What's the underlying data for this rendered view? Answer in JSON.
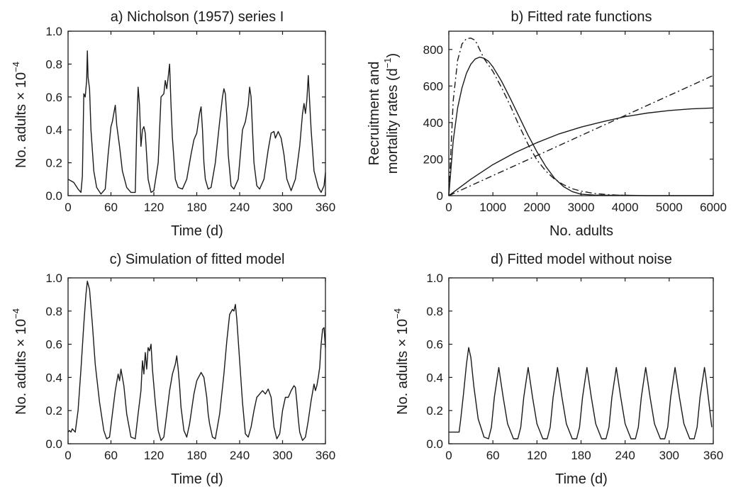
{
  "chart_data": [
    {
      "id": "a",
      "type": "line",
      "title": "a) Nicholson (1957) series I",
      "xlabel": "Time (d)",
      "ylabel": "No. adults × 10",
      "ylabel_exp": "−4",
      "xlim": [
        0,
        360
      ],
      "ylim": [
        0,
        1.0
      ],
      "xticks": [
        "0",
        "60",
        "120",
        "180",
        "240",
        "300",
        "360"
      ],
      "yticks": [
        "0.0",
        "0.2",
        "0.4",
        "0.6",
        "0.8",
        "1.0"
      ],
      "series": [
        {
          "style": "solid",
          "x": [
            0,
            8,
            14,
            18,
            20,
            22,
            24,
            26,
            27,
            28,
            30,
            32,
            36,
            40,
            46,
            52,
            56,
            60,
            62,
            64,
            66,
            68,
            72,
            76,
            82,
            88,
            92,
            94,
            96,
            98,
            100,
            102,
            104,
            106,
            108,
            112,
            116,
            120,
            126,
            130,
            134,
            136,
            138,
            140,
            142,
            144,
            146,
            150,
            154,
            160,
            166,
            172,
            176,
            180,
            184,
            186,
            188,
            190,
            192,
            196,
            200,
            206,
            212,
            216,
            218,
            220,
            222,
            224,
            228,
            232,
            238,
            244,
            248,
            252,
            254,
            256,
            258,
            260,
            264,
            268,
            274,
            280,
            284,
            288,
            290,
            294,
            298,
            302,
            306,
            312,
            318,
            324,
            328,
            330,
            332,
            334,
            336,
            340,
            344,
            350,
            354,
            358,
            360
          ],
          "y": [
            0.1,
            0.08,
            0.04,
            0.02,
            0.12,
            0.62,
            0.6,
            0.7,
            0.88,
            0.72,
            0.65,
            0.4,
            0.15,
            0.05,
            0.01,
            0.04,
            0.25,
            0.42,
            0.45,
            0.5,
            0.55,
            0.43,
            0.3,
            0.15,
            0.05,
            0.02,
            0.02,
            0.02,
            0.4,
            0.66,
            0.55,
            0.3,
            0.4,
            0.42,
            0.38,
            0.1,
            0.02,
            0.03,
            0.2,
            0.6,
            0.62,
            0.7,
            0.65,
            0.72,
            0.8,
            0.55,
            0.35,
            0.1,
            0.05,
            0.04,
            0.1,
            0.25,
            0.34,
            0.38,
            0.5,
            0.54,
            0.4,
            0.2,
            0.1,
            0.04,
            0.05,
            0.2,
            0.45,
            0.6,
            0.65,
            0.62,
            0.48,
            0.25,
            0.06,
            0.04,
            0.1,
            0.4,
            0.45,
            0.55,
            0.66,
            0.6,
            0.4,
            0.2,
            0.06,
            0.04,
            0.1,
            0.28,
            0.38,
            0.39,
            0.35,
            0.39,
            0.35,
            0.25,
            0.1,
            0.03,
            0.1,
            0.3,
            0.5,
            0.56,
            0.5,
            0.58,
            0.73,
            0.4,
            0.15,
            0.05,
            0.02,
            0.06,
            0.14
          ]
        }
      ]
    },
    {
      "id": "b",
      "type": "line",
      "title": "b) Fitted rate functions",
      "xlabel": "No. adults",
      "ylabel": "Recruitment and",
      "ylabel_line2": "mortality rates (d",
      "ylabel_exp": "−1",
      "ylabel_tail": ")",
      "xlim": [
        0,
        6000
      ],
      "ylim": [
        0,
        900
      ],
      "xticks": [
        "0",
        "1000",
        "2000",
        "3000",
        "4000",
        "5000",
        "6000"
      ],
      "yticks": [
        "0",
        "200",
        "400",
        "600",
        "800"
      ],
      "series": [
        {
          "style": "solid",
          "x": [
            0,
            100,
            200,
            300,
            400,
            500,
            600,
            700,
            800,
            900,
            1000,
            1200,
            1400,
            1600,
            1800,
            2000,
            2200,
            2400,
            2600,
            2800,
            3000,
            3300,
            3600,
            4000,
            4500,
            5000,
            6000
          ],
          "y": [
            0,
            300,
            480,
            590,
            670,
            720,
            748,
            758,
            752,
            735,
            705,
            625,
            530,
            430,
            330,
            240,
            160,
            95,
            50,
            22,
            8,
            3,
            2,
            2,
            0,
            0,
            0
          ]
        },
        {
          "style": "dashdot",
          "x": [
            0,
            100,
            200,
            300,
            400,
            500,
            600,
            700,
            800,
            1000,
            1200,
            1400,
            1600,
            1800,
            2000,
            2200,
            2400,
            2600,
            2800,
            3000,
            3300,
            3600,
            3800,
            4000,
            4200
          ],
          "y": [
            0,
            520,
            740,
            830,
            860,
            862,
            850,
            800,
            750,
            680,
            590,
            490,
            380,
            280,
            195,
            135,
            90,
            60,
            38,
            25,
            12,
            6,
            3,
            2,
            0
          ]
        },
        {
          "style": "solid",
          "x": [
            0,
            500,
            1000,
            1500,
            2000,
            2500,
            3000,
            3500,
            4000,
            4500,
            5000,
            5500,
            6000
          ],
          "y": [
            0,
            90,
            170,
            235,
            290,
            338,
            375,
            405,
            432,
            452,
            466,
            475,
            480
          ]
        },
        {
          "style": "dashdot",
          "x": [
            0,
            6000
          ],
          "y": [
            0,
            658
          ]
        }
      ]
    },
    {
      "id": "c",
      "type": "line",
      "title": "c) Simulation of fitted model",
      "xlabel": "Time (d)",
      "ylabel": "No. adults × 10",
      "ylabel_exp": "−4",
      "xlim": [
        0,
        360
      ],
      "ylim": [
        0,
        1.0
      ],
      "xticks": [
        "0",
        "60",
        "120",
        "180",
        "240",
        "300",
        "360"
      ],
      "yticks": [
        "0.0",
        "0.2",
        "0.4",
        "0.6",
        "0.8",
        "1.0"
      ],
      "series": [
        {
          "style": "solid",
          "x": [
            0,
            2,
            4,
            6,
            8,
            10,
            14,
            18,
            22,
            25,
            27,
            30,
            34,
            38,
            44,
            50,
            54,
            58,
            62,
            66,
            70,
            72,
            74,
            78,
            82,
            88,
            94,
            98,
            102,
            104,
            106,
            108,
            110,
            112,
            114,
            116,
            118,
            122,
            126,
            130,
            134,
            138,
            142,
            146,
            150,
            152,
            154,
            156,
            158,
            162,
            166,
            170,
            176,
            180,
            186,
            190,
            194,
            196,
            198,
            202,
            206,
            212,
            218,
            222,
            226,
            230,
            232,
            234,
            236,
            240,
            244,
            248,
            252,
            256,
            260,
            264,
            268,
            272,
            276,
            280,
            284,
            288,
            292,
            296,
            300,
            304,
            308,
            312,
            316,
            318,
            320,
            322,
            324,
            328,
            332,
            336,
            340,
            344,
            346,
            348,
            350,
            352,
            354,
            356,
            358,
            360
          ],
          "y": [
            0.07,
            0.08,
            0.07,
            0.09,
            0.08,
            0.07,
            0.2,
            0.45,
            0.72,
            0.9,
            0.98,
            0.93,
            0.72,
            0.48,
            0.25,
            0.08,
            0.03,
            0.04,
            0.18,
            0.32,
            0.42,
            0.38,
            0.45,
            0.35,
            0.18,
            0.04,
            0.03,
            0.18,
            0.32,
            0.5,
            0.42,
            0.55,
            0.45,
            0.58,
            0.56,
            0.6,
            0.45,
            0.25,
            0.08,
            0.02,
            0.04,
            0.18,
            0.32,
            0.42,
            0.48,
            0.53,
            0.45,
            0.35,
            0.22,
            0.08,
            0.04,
            0.12,
            0.3,
            0.38,
            0.43,
            0.4,
            0.28,
            0.18,
            0.12,
            0.04,
            0.03,
            0.18,
            0.42,
            0.62,
            0.78,
            0.81,
            0.8,
            0.84,
            0.75,
            0.5,
            0.25,
            0.06,
            0.04,
            0.1,
            0.2,
            0.28,
            0.3,
            0.32,
            0.3,
            0.33,
            0.28,
            0.1,
            0.03,
            0.06,
            0.2,
            0.28,
            0.28,
            0.32,
            0.35,
            0.34,
            0.25,
            0.15,
            0.07,
            0.02,
            0.04,
            0.14,
            0.26,
            0.36,
            0.32,
            0.35,
            0.4,
            0.46,
            0.6,
            0.69,
            0.7,
            0.58
          ]
        }
      ]
    },
    {
      "id": "d",
      "type": "line",
      "title": "d) Fitted model without noise",
      "xlabel": "Time (d)",
      "ylabel": "No. adults × 10",
      "ylabel_exp": "−4",
      "xlim": [
        0,
        360
      ],
      "ylim": [
        0,
        1.0
      ],
      "xticks": [
        "0",
        "60",
        "120",
        "180",
        "240",
        "300",
        "360"
      ],
      "yticks": [
        "0.0",
        "0.2",
        "0.4",
        "0.6",
        "0.8",
        "1.0"
      ],
      "series": [
        {
          "style": "solid",
          "x": [
            0,
            14,
            16,
            20,
            24,
            27,
            30,
            34,
            40,
            48,
            54,
            58,
            62,
            66,
            68,
            70,
            74,
            80,
            88,
            94,
            98,
            102,
            106,
            108,
            110,
            114,
            120,
            128,
            134,
            138,
            142,
            146,
            148,
            150,
            154,
            160,
            168,
            174,
            178,
            182,
            186,
            188,
            190,
            194,
            200,
            208,
            214,
            218,
            222,
            226,
            228,
            230,
            234,
            240,
            248,
            254,
            258,
            262,
            266,
            268,
            270,
            274,
            280,
            288,
            294,
            298,
            302,
            306,
            308,
            310,
            314,
            320,
            328,
            334,
            338,
            342,
            346,
            348,
            350,
            354,
            358
          ],
          "y": [
            0.07,
            0.07,
            0.14,
            0.3,
            0.48,
            0.58,
            0.52,
            0.35,
            0.15,
            0.04,
            0.03,
            0.1,
            0.28,
            0.4,
            0.46,
            0.4,
            0.28,
            0.12,
            0.03,
            0.03,
            0.1,
            0.28,
            0.4,
            0.46,
            0.4,
            0.28,
            0.12,
            0.03,
            0.03,
            0.1,
            0.28,
            0.4,
            0.46,
            0.4,
            0.28,
            0.12,
            0.03,
            0.03,
            0.1,
            0.28,
            0.4,
            0.46,
            0.4,
            0.28,
            0.12,
            0.03,
            0.03,
            0.1,
            0.28,
            0.4,
            0.46,
            0.4,
            0.28,
            0.12,
            0.03,
            0.03,
            0.1,
            0.28,
            0.4,
            0.46,
            0.4,
            0.28,
            0.12,
            0.03,
            0.03,
            0.1,
            0.28,
            0.4,
            0.46,
            0.4,
            0.28,
            0.12,
            0.03,
            0.03,
            0.1,
            0.28,
            0.4,
            0.46,
            0.4,
            0.25,
            0.1
          ]
        }
      ]
    }
  ]
}
